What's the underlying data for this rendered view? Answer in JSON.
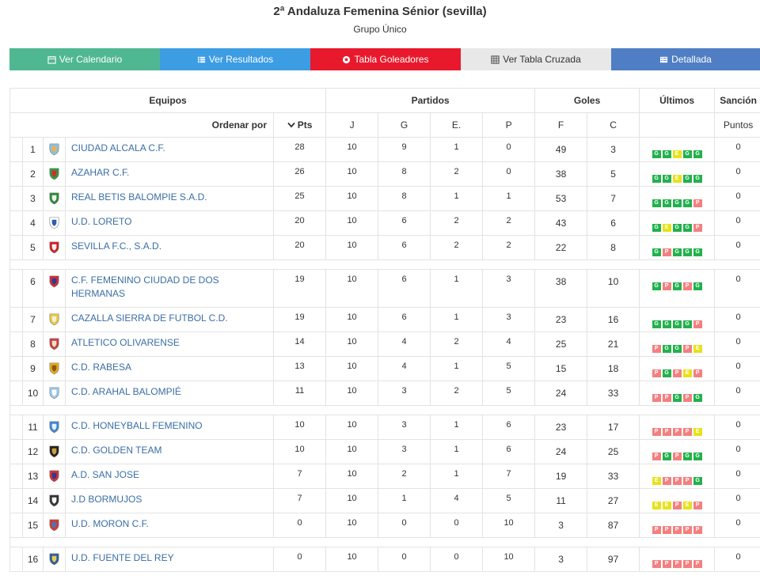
{
  "header": {
    "title": "2ª Andaluza Femenina Sénior (sevilla)",
    "subtitle": "Grupo Único"
  },
  "buttons": {
    "calendar": "Ver Calendario",
    "results": "Ver Resultados",
    "scorers": "Tabla Goleadores",
    "cross": "Ver Tabla Cruzada",
    "detailed": "Detallada"
  },
  "table_headers": {
    "equipos": "Equipos",
    "partidos": "Partidos",
    "goles": "Goles",
    "ultimos": "Últimos",
    "sancion": "Sanción",
    "ordenar": "Ordenar por",
    "pts": "Pts",
    "j": "J",
    "g": "G",
    "e": "E.",
    "p": "P",
    "f": "F",
    "c": "C",
    "puntos": "Puntos"
  },
  "colors": {
    "win": "#22b14c",
    "draw": "#e7e21b",
    "loss": "#f47f7f"
  },
  "rows": [
    {
      "pos": "1",
      "team": "CIUDAD ALCALA C.F.",
      "logo": "blue-crest-icon",
      "pts": "28",
      "j": "10",
      "g": "9",
      "e": "1",
      "p": "0",
      "f": "49",
      "c": "3",
      "last": [
        "G",
        "G",
        "E",
        "G",
        "G"
      ],
      "sancion": "0"
    },
    {
      "pos": "2",
      "team": "AZAHAR C.F.",
      "logo": "green-red-crest-icon",
      "pts": "26",
      "j": "10",
      "g": "8",
      "e": "2",
      "p": "0",
      "f": "38",
      "c": "5",
      "last": [
        "G",
        "G",
        "E",
        "G",
        "G"
      ],
      "sancion": "0"
    },
    {
      "pos": "3",
      "team": "REAL BETIS BALOMPIE S.A.D.",
      "logo": "betis-crest-icon",
      "pts": "25",
      "j": "10",
      "g": "8",
      "e": "1",
      "p": "1",
      "f": "53",
      "c": "7",
      "last": [
        "G",
        "G",
        "G",
        "G",
        "P"
      ],
      "sancion": "0"
    },
    {
      "pos": "4",
      "team": "U.D. LORETO",
      "logo": "blue-shield-icon",
      "pts": "20",
      "j": "10",
      "g": "6",
      "e": "2",
      "p": "2",
      "f": "43",
      "c": "6",
      "last": [
        "G",
        "E",
        "G",
        "G",
        "P"
      ],
      "sancion": "0"
    },
    {
      "pos": "5",
      "team": "SEVILLA F.C., S.A.D.",
      "logo": "sevilla-crest-icon",
      "pts": "20",
      "j": "10",
      "g": "6",
      "e": "2",
      "p": "2",
      "f": "22",
      "c": "8",
      "last": [
        "G",
        "P",
        "G",
        "G",
        "G"
      ],
      "sancion": "0"
    },
    {
      "pos": "6",
      "team": "C.F. FEMENINO CIUDAD DE DOS HERMANAS",
      "logo": "red-blue-crest-icon",
      "pts": "19",
      "j": "10",
      "g": "6",
      "e": "1",
      "p": "3",
      "f": "38",
      "c": "10",
      "last": [
        "G",
        "P",
        "G",
        "P",
        "G"
      ],
      "sancion": "0"
    },
    {
      "pos": "7",
      "team": "CAZALLA SIERRA DE FUTBOL C.D.",
      "logo": "yellow-crest-icon",
      "pts": "19",
      "j": "10",
      "g": "6",
      "e": "1",
      "p": "3",
      "f": "23",
      "c": "16",
      "last": [
        "G",
        "G",
        "G",
        "G",
        "P"
      ],
      "sancion": "0"
    },
    {
      "pos": "8",
      "team": "ATLETICO OLIVARENSE",
      "logo": "olive-crest-icon",
      "pts": "14",
      "j": "10",
      "g": "4",
      "e": "2",
      "p": "4",
      "f": "25",
      "c": "21",
      "last": [
        "P",
        "G",
        "G",
        "P",
        "E"
      ],
      "sancion": "0"
    },
    {
      "pos": "9",
      "team": "C.D. RABESA",
      "logo": "gold-crest-icon",
      "pts": "13",
      "j": "10",
      "g": "4",
      "e": "1",
      "p": "5",
      "f": "15",
      "c": "18",
      "last": [
        "P",
        "G",
        "P",
        "E",
        "P"
      ],
      "sancion": "0"
    },
    {
      "pos": "10",
      "team": "C.D. ARAHAL BALOMPIÉ",
      "logo": "lightblue-shield-icon",
      "pts": "11",
      "j": "10",
      "g": "3",
      "e": "2",
      "p": "5",
      "f": "24",
      "c": "33",
      "last": [
        "P",
        "P",
        "G",
        "P",
        "G"
      ],
      "sancion": "0"
    },
    {
      "pos": "11",
      "team": "C.D. HONEYBALL FEMENINO",
      "logo": "blue-ball-icon",
      "pts": "10",
      "j": "10",
      "g": "3",
      "e": "1",
      "p": "6",
      "f": "23",
      "c": "17",
      "last": [
        "P",
        "P",
        "P",
        "P",
        "E"
      ],
      "sancion": "0"
    },
    {
      "pos": "12",
      "team": "C.D. GOLDEN TEAM",
      "logo": "black-circle-icon",
      "pts": "10",
      "j": "10",
      "g": "3",
      "e": "1",
      "p": "6",
      "f": "24",
      "c": "25",
      "last": [
        "P",
        "G",
        "P",
        "G",
        "G"
      ],
      "sancion": "0"
    },
    {
      "pos": "13",
      "team": "A.D. SAN JOSE",
      "logo": "red-blue-shield-icon",
      "pts": "7",
      "j": "10",
      "g": "2",
      "e": "1",
      "p": "7",
      "f": "19",
      "c": "33",
      "last": [
        "E",
        "P",
        "P",
        "P",
        "G"
      ],
      "sancion": "0"
    },
    {
      "pos": "14",
      "team": "J.D BORMUJOS",
      "logo": "striped-shield-icon",
      "pts": "7",
      "j": "10",
      "g": "1",
      "e": "4",
      "p": "5",
      "f": "11",
      "c": "27",
      "last": [
        "E",
        "E",
        "P",
        "E",
        "P"
      ],
      "sancion": "0"
    },
    {
      "pos": "15",
      "team": "U.D. MORON C.F.",
      "logo": "moron-crest-icon",
      "pts": "0",
      "j": "10",
      "g": "0",
      "e": "0",
      "p": "10",
      "f": "3",
      "c": "87",
      "last": [
        "P",
        "P",
        "P",
        "P",
        "P"
      ],
      "sancion": "0"
    },
    {
      "pos": "16",
      "team": "U.D. FUENTE DEL REY",
      "logo": "fuente-crest-icon",
      "pts": "0",
      "j": "10",
      "g": "0",
      "e": "0",
      "p": "10",
      "f": "3",
      "c": "97",
      "last": [
        "P",
        "P",
        "P",
        "P",
        "P"
      ],
      "sancion": "0"
    }
  ],
  "separators_after": [
    "5",
    "10",
    "15"
  ]
}
